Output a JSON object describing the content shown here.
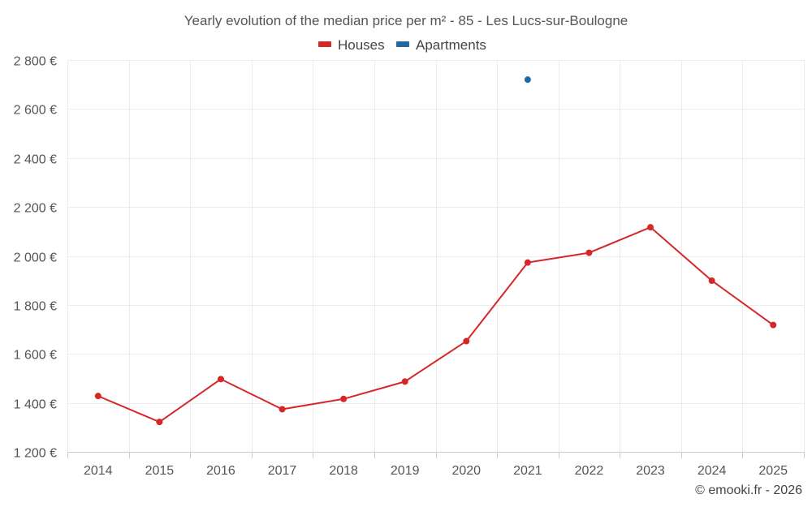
{
  "chart_data": {
    "type": "line",
    "title": "Yearly evolution of the median price per m² - 85 - Les Lucs-sur-Boulogne",
    "xlabel": "",
    "ylabel": "",
    "categories": [
      "2014",
      "2015",
      "2016",
      "2017",
      "2018",
      "2019",
      "2020",
      "2021",
      "2022",
      "2023",
      "2024",
      "2025"
    ],
    "ylim": [
      1200,
      2800
    ],
    "yticks": [
      1200,
      1400,
      1600,
      1800,
      2000,
      2200,
      2400,
      2600,
      2800
    ],
    "ytick_labels": [
      "1 200 €",
      "1 400 €",
      "1 600 €",
      "1 800 €",
      "2 000 €",
      "2 200 €",
      "2 400 €",
      "2 600 €",
      "2 800 €"
    ],
    "grid": true,
    "legend_position": "top-center",
    "series": [
      {
        "name": "Houses",
        "color": "#d62728",
        "values": [
          1428,
          1322,
          1497,
          1374,
          1416,
          1487,
          1652,
          1973,
          2013,
          2117,
          1899,
          1718
        ]
      },
      {
        "name": "Apartments",
        "color": "#1f6aa5",
        "values": [
          null,
          null,
          null,
          null,
          null,
          null,
          null,
          2720,
          null,
          null,
          null,
          null
        ]
      }
    ],
    "credits": "© emooki.fr - 2026"
  }
}
